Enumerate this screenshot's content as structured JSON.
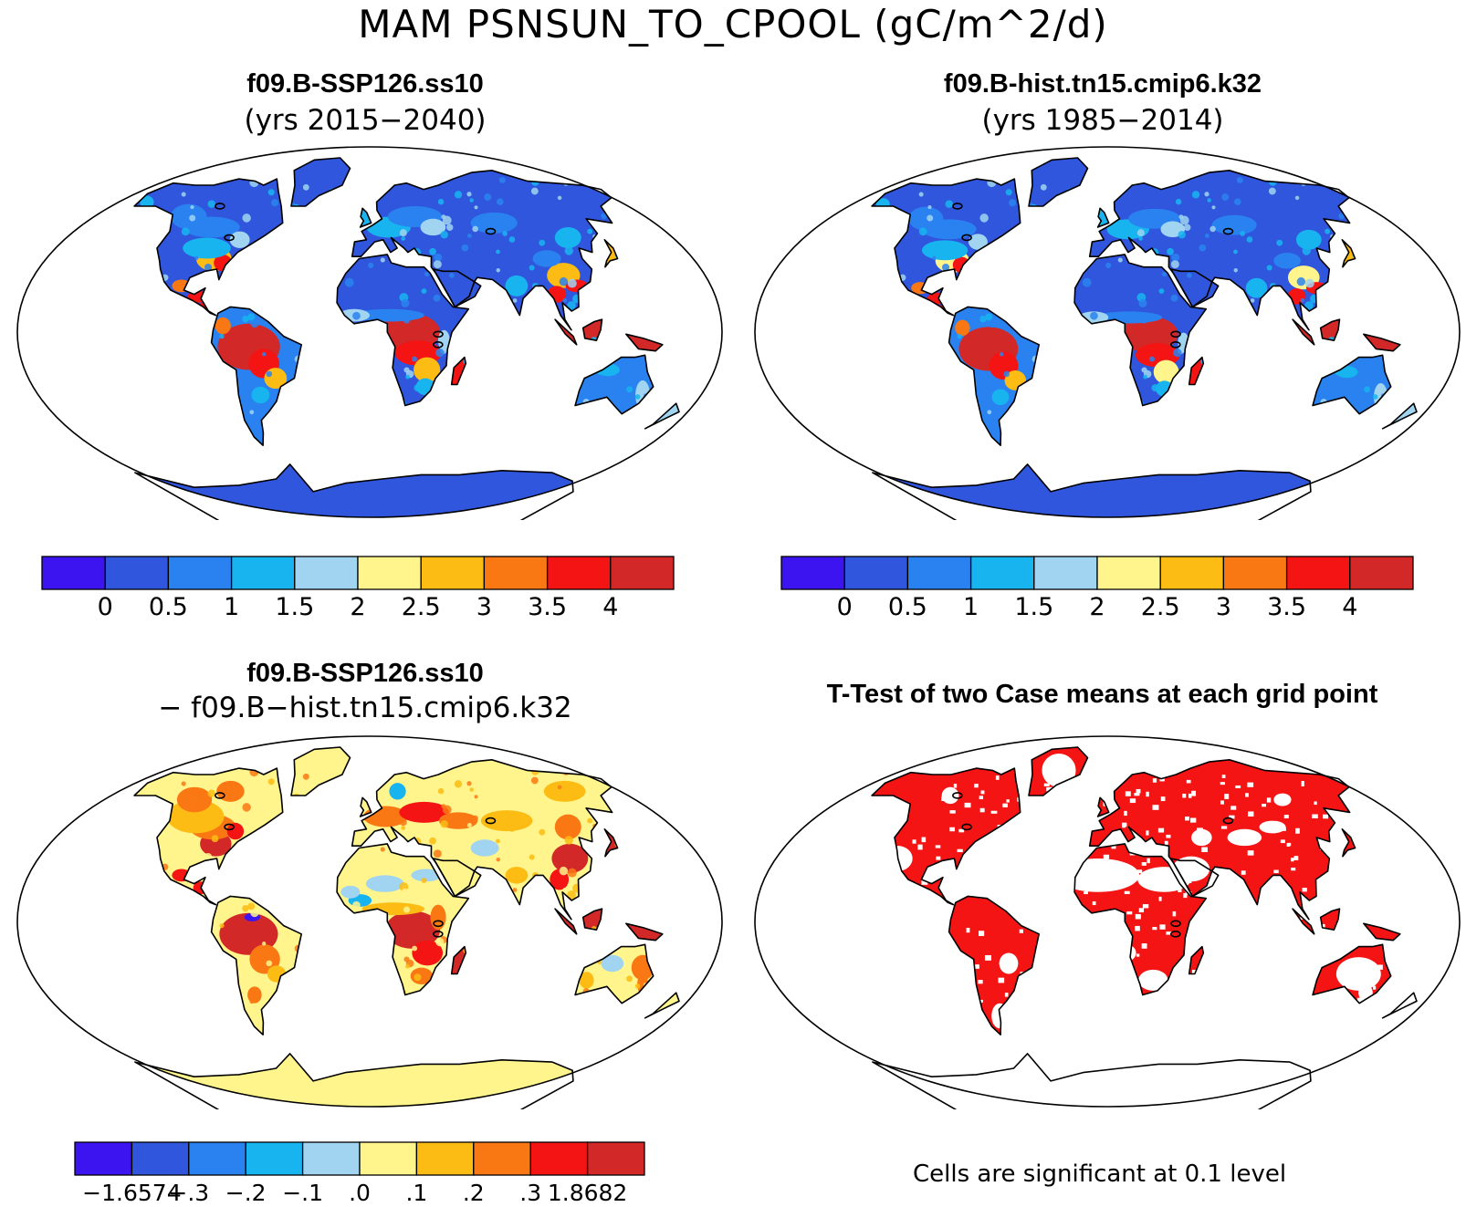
{
  "figure_title": "MAM PSNSUN_TO_CPOOL (gC/m^2/d)",
  "panels": {
    "top_left": {
      "title": "f09.B-SSP126.ss10",
      "subtitle": "(yrs 2015−2040)"
    },
    "top_right": {
      "title": "f09.B-hist.tn15.cmip6.k32",
      "subtitle": "(yrs 1985−2014)"
    },
    "bottom_left": {
      "title": "f09.B-SSP126.ss10",
      "subtitle": "− f09.B−hist.tn15.cmip6.k32"
    },
    "bottom_right": {
      "title": "T-Test of two Case means at each grid point",
      "footnote": "Cells are significant at 0.1 level"
    }
  },
  "colorbars": {
    "abs": {
      "colors": [
        "#3c14f0",
        "#2f56dc",
        "#2a82f0",
        "#18b4f0",
        "#a0d4f0",
        "#fff58c",
        "#fcbc14",
        "#fa7814",
        "#f51414",
        "#d22828"
      ],
      "labels": [
        "0",
        "0.5",
        "1",
        "1.5",
        "2",
        "2.5",
        "3",
        "3.5",
        "4"
      ]
    },
    "diff": {
      "colors": [
        "#3c14f0",
        "#2f56dc",
        "#2a82f0",
        "#18b4f0",
        "#a0d4f0",
        "#fff58c",
        "#fcbc14",
        "#fa7814",
        "#f51414",
        "#d22828"
      ],
      "labels": [
        "−1.6574",
        "−.3",
        "−.2",
        "−.1",
        ".0",
        ".1",
        ".2",
        ".3",
        "1.8682"
      ]
    }
  },
  "colors": {
    "ocean": "#ffffff",
    "coast": "#000000",
    "significant": "#f51414",
    "antarctica_abs": "#2f56dc",
    "antarctica_diff": "#fff58c"
  }
}
